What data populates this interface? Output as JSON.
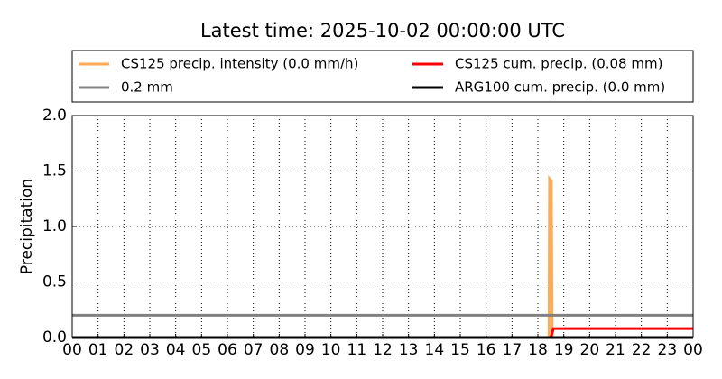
{
  "chart_data": {
    "type": "line",
    "title": "Latest time: 2025-10-02 00:00:00 UTC",
    "y_label": "Precipitation",
    "series": [
      {
        "name": "CS125 precip. intensity (0.0 mm/h)",
        "color": "#ffaa55",
        "x": [
          0,
          18.43,
          18.45,
          18.52,
          18.55,
          24
        ],
        "values": [
          0,
          0,
          1.43,
          1.41,
          0,
          0
        ]
      },
      {
        "name": "0.2 mm",
        "color": "#808080",
        "x": [
          0,
          24
        ],
        "values": [
          0.2,
          0.2
        ]
      },
      {
        "name": "CS125 cum. precip. (0.08 mm)",
        "color": "#ff0000",
        "x": [
          0,
          18.5,
          18.6,
          24
        ],
        "values": [
          0,
          0,
          0.08,
          0.08
        ]
      },
      {
        "name": "ARG100 cum. precip. (0.0 mm)",
        "color": "#000000",
        "x": [
          0,
          24
        ],
        "values": [
          0,
          0
        ]
      }
    ],
    "xlim": [
      0,
      24
    ],
    "xticks": [
      {
        "value": 0,
        "label": "00"
      },
      {
        "value": 1,
        "label": "01"
      },
      {
        "value": 2,
        "label": "02"
      },
      {
        "value": 3,
        "label": "03"
      },
      {
        "value": 4,
        "label": "04"
      },
      {
        "value": 5,
        "label": "05"
      },
      {
        "value": 6,
        "label": "06"
      },
      {
        "value": 7,
        "label": "07"
      },
      {
        "value": 8,
        "label": "08"
      },
      {
        "value": 9,
        "label": "09"
      },
      {
        "value": 10,
        "label": "10"
      },
      {
        "value": 11,
        "label": "11"
      },
      {
        "value": 12,
        "label": "12"
      },
      {
        "value": 13,
        "label": "13"
      },
      {
        "value": 14,
        "label": "14"
      },
      {
        "value": 15,
        "label": "15"
      },
      {
        "value": 16,
        "label": "16"
      },
      {
        "value": 17,
        "label": "17"
      },
      {
        "value": 18,
        "label": "18"
      },
      {
        "value": 19,
        "label": "19"
      },
      {
        "value": 20,
        "label": "20"
      },
      {
        "value": 21,
        "label": "21"
      },
      {
        "value": 22,
        "label": "22"
      },
      {
        "value": 23,
        "label": "23"
      },
      {
        "value": 24,
        "label": "00"
      }
    ],
    "ylim": [
      0,
      2
    ],
    "yticks": [
      {
        "value": 0,
        "label": "0.0"
      },
      {
        "value": 0.5,
        "label": "0.5"
      },
      {
        "value": 1,
        "label": "1.0"
      },
      {
        "value": 1.5,
        "label": "1.5"
      },
      {
        "value": 2,
        "label": "2.0"
      }
    ],
    "grid": true
  }
}
